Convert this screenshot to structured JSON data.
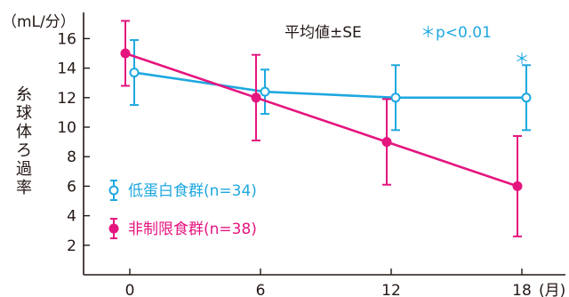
{
  "chart_data": {
    "type": "line",
    "ylabel": "糸球体ろ過率",
    "yunit": "（mL/分）",
    "xunit": "(月)",
    "note": "平均値±SE",
    "significance": "＊p<0.01",
    "significance_marker": "＊",
    "significance_marker_at_x": 18,
    "x": [
      0,
      6,
      12,
      18
    ],
    "x_tick_labels": [
      "0",
      "6",
      "12",
      "18"
    ],
    "y_ticks": [
      2,
      4,
      6,
      8,
      10,
      12,
      14,
      16
    ],
    "ylim": [
      0,
      17
    ],
    "xlim": [
      -2,
      20
    ],
    "grid": false,
    "legend_position": "lower-left",
    "series": [
      {
        "name": "低蛋白食群(n=34)",
        "color": "#1fa8e0",
        "marker": "open-circle",
        "values": [
          13.7,
          12.4,
          12.0,
          12.0
        ],
        "errors": [
          2.2,
          1.5,
          2.2,
          2.2
        ]
      },
      {
        "name": "非制限食群(n=38)",
        "color": "#e5157f",
        "marker": "filled-circle",
        "values": [
          15.0,
          12.0,
          9.0,
          6.0
        ],
        "errors": [
          2.2,
          2.9,
          2.9,
          3.4
        ]
      }
    ]
  }
}
